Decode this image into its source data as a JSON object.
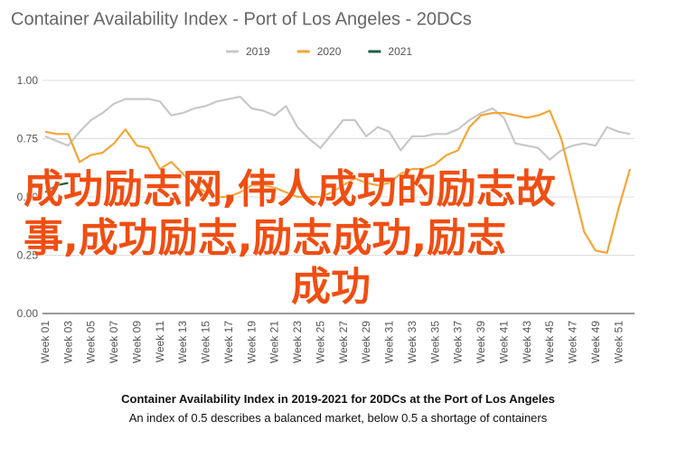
{
  "chart_data": {
    "type": "line",
    "title": "Container Availability Index - Port of Los Angeles - 20DCs",
    "categories": [
      "Week 01",
      null,
      "Week 03",
      null,
      "Week 05",
      null,
      "Week 07",
      null,
      "Week 09",
      null,
      "Week 11",
      null,
      "Week 13",
      null,
      "Week 15",
      null,
      "Week 17",
      null,
      "Week 19",
      null,
      "Week 21",
      null,
      "Week 23",
      null,
      "Week 25",
      null,
      "Week 27",
      null,
      "Week 29",
      null,
      "Week 31",
      null,
      "Week 33",
      null,
      "Week 35",
      null,
      "Week 37",
      null,
      "Week 39",
      null,
      "Week 41",
      null,
      "Week 43",
      null,
      "Week 45",
      null,
      "Week 47",
      null,
      "Week 49",
      null,
      "Week 51",
      null
    ],
    "series": [
      {
        "name": "2019",
        "color": "#c8c8c8",
        "values": [
          0.76,
          0.74,
          0.72,
          0.78,
          0.83,
          0.86,
          0.9,
          0.92,
          0.92,
          0.92,
          0.91,
          0.85,
          0.86,
          0.88,
          0.89,
          0.91,
          0.92,
          0.93,
          0.88,
          0.87,
          0.85,
          0.89,
          0.8,
          0.75,
          0.71,
          0.77,
          0.83,
          0.83,
          0.76,
          0.8,
          0.78,
          0.7,
          0.76,
          0.76,
          0.77,
          0.77,
          0.79,
          0.83,
          0.86,
          0.88,
          0.84,
          0.73,
          0.72,
          0.71,
          0.66,
          0.7,
          0.72,
          0.73,
          0.72,
          0.8,
          0.78,
          0.77
        ]
      },
      {
        "name": "2020",
        "color": "#f4a636",
        "values": [
          0.78,
          0.77,
          0.77,
          0.65,
          0.68,
          0.69,
          0.73,
          0.79,
          0.72,
          0.71,
          0.62,
          0.65,
          0.6,
          0.55,
          0.52,
          0.5,
          0.5,
          0.52,
          0.55,
          0.55,
          0.54,
          0.52,
          0.5,
          0.5,
          0.5,
          0.52,
          0.55,
          0.58,
          0.56,
          0.55,
          0.56,
          0.6,
          0.62,
          0.62,
          0.64,
          0.68,
          0.7,
          0.8,
          0.85,
          0.86,
          0.86,
          0.85,
          0.84,
          0.85,
          0.87,
          0.75,
          0.55,
          0.35,
          0.27,
          0.26,
          0.45,
          0.62
        ]
      },
      {
        "name": "2021",
        "color": "#1e5f3c",
        "values": [
          0.52,
          0.55,
          0.56,
          null,
          null,
          null,
          null,
          null,
          null,
          null,
          null,
          null,
          null,
          null,
          null,
          null,
          null,
          null,
          null,
          null,
          null,
          null,
          null,
          null,
          null,
          null,
          null,
          null,
          null,
          null,
          null,
          null,
          null,
          null,
          null,
          null,
          null,
          null,
          null,
          null,
          null,
          null,
          null,
          null,
          null,
          null,
          null,
          null,
          null,
          null,
          null,
          null
        ]
      }
    ],
    "ylim": [
      0,
      1
    ],
    "yticks": [
      {
        "value": 0,
        "label": "0.00"
      },
      {
        "value": 0.25,
        "label": "0.25"
      },
      {
        "value": 0.5,
        "label": "0.50"
      },
      {
        "value": 0.75,
        "label": "0.75"
      },
      {
        "value": 1,
        "label": "1.00"
      }
    ],
    "grid": true,
    "legend": "top",
    "caption": "Container Availability Index in 2019-2021 for 20DCs at the Port of Los Angeles",
    "subcaption": "An index of 0.5 describes a balanced market, below 0.5 a shortage of containers"
  },
  "overlay": [
    "成功励志网,伟人成功的励志故",
    "事,成功励志,励志成功,励志",
    "成功"
  ]
}
